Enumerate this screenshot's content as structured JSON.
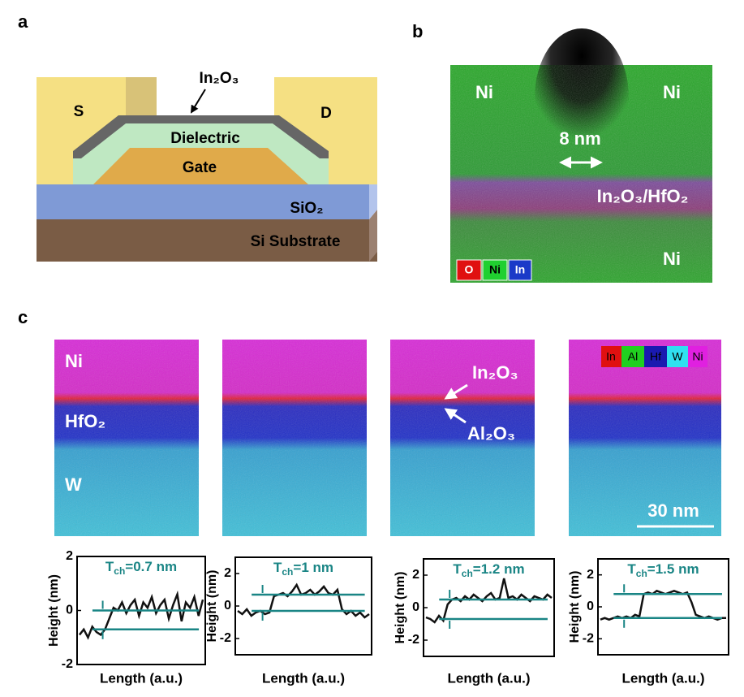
{
  "panel_a": {
    "label": "a",
    "channel": "In₂O₃",
    "source": "S",
    "drain": "D",
    "dielectric": "Dielectric",
    "gate": "Gate",
    "oxide": "SiO₂",
    "substrate": "Si Substrate"
  },
  "panel_b": {
    "label": "b",
    "ni_left": "Ni",
    "ni_right": "Ni",
    "ni_bottom": "Ni",
    "gap": "8 nm",
    "stack": "In₂O₃/HfO₂",
    "legend": [
      "O",
      "Ni",
      "In"
    ]
  },
  "panel_c": {
    "label": "c",
    "top": "Ni",
    "middle": "HfO₂",
    "bottom": "W",
    "channel": "In₂O₃",
    "interlayer": "Al₂O₃",
    "legend": [
      "In",
      "Al",
      "Hf",
      "W",
      "Ni"
    ],
    "scale": "30 nm"
  },
  "chart_data": [
    {
      "type": "line",
      "title": {
        "symbol": "T",
        "subscript": "ch",
        "text": "=0.7 nm"
      },
      "xlabel": "Length (a.u.)",
      "ylabel": "Height (nm)",
      "ylim": [
        -2,
        2
      ],
      "yticks": [
        -2,
        0,
        2
      ],
      "color": "#111111",
      "level_color": "#1a8585",
      "levels": [
        0,
        -0.7
      ],
      "values": [
        -0.9,
        -0.7,
        -1.0,
        -0.6,
        -0.8,
        -0.9,
        -0.7,
        -0.3,
        0.1,
        0.0,
        0.3,
        -0.1,
        0.2,
        0.4,
        -0.2,
        0.3,
        0.1,
        0.5,
        -0.1,
        0.2,
        0.4,
        -0.3,
        0.2,
        0.6,
        -0.4,
        0.3,
        0.1,
        0.5,
        -0.2,
        0.4
      ]
    },
    {
      "type": "line",
      "title": {
        "symbol": "T",
        "subscript": "ch",
        "text": "=1 nm"
      },
      "xlabel": "Length (a.u.)",
      "ylabel": "Height (nm)",
      "ylim": [
        -3,
        3
      ],
      "yticks": [
        -2,
        0,
        2
      ],
      "color": "#111111",
      "level_color": "#1a8585",
      "levels": [
        0.7,
        -0.3
      ],
      "values": [
        -0.3,
        -0.5,
        -0.2,
        -0.6,
        -0.4,
        -0.3,
        -0.5,
        -0.4,
        0.6,
        0.7,
        0.8,
        0.6,
        0.9,
        1.3,
        0.7,
        0.8,
        1.0,
        0.7,
        0.9,
        1.2,
        0.8,
        0.7,
        1.0,
        -0.2,
        -0.5,
        -0.3,
        -0.6,
        -0.4,
        -0.7,
        -0.5
      ]
    },
    {
      "type": "line",
      "title": {
        "symbol": "T",
        "subscript": "ch",
        "text": "=1.2 nm"
      },
      "xlabel": "Length (a.u.)",
      "ylabel": "Height (nm)",
      "ylim": [
        -3,
        3
      ],
      "yticks": [
        -2,
        0,
        2
      ],
      "color": "#111111",
      "level_color": "#1a8585",
      "levels": [
        0.5,
        -0.7
      ],
      "values": [
        -0.6,
        -0.7,
        -0.9,
        -0.5,
        -0.8,
        0.2,
        0.5,
        0.6,
        0.4,
        0.7,
        0.5,
        0.8,
        0.6,
        0.4,
        0.7,
        0.9,
        0.5,
        0.6,
        1.8,
        0.6,
        0.7,
        0.5,
        0.8,
        0.6,
        0.4,
        0.7,
        0.6,
        0.5,
        0.8,
        0.6
      ]
    },
    {
      "type": "line",
      "title": {
        "symbol": "T",
        "subscript": "ch",
        "text": "=1.5 nm"
      },
      "xlabel": "Length (a.u.)",
      "ylabel": "Height (nm)",
      "ylim": [
        -3,
        3
      ],
      "yticks": [
        -2,
        0,
        2
      ],
      "color": "#111111",
      "level_color": "#1a8585",
      "levels": [
        0.8,
        -0.7
      ],
      "values": [
        -0.8,
        -0.7,
        -0.8,
        -0.7,
        -0.6,
        -0.7,
        -0.6,
        -0.7,
        -0.5,
        -0.6,
        0.8,
        0.9,
        0.8,
        1.0,
        0.9,
        0.8,
        0.9,
        1.0,
        0.9,
        0.8,
        0.9,
        0.3,
        -0.5,
        -0.6,
        -0.7,
        -0.6,
        -0.7,
        -0.8,
        -0.7,
        -0.7
      ]
    }
  ]
}
